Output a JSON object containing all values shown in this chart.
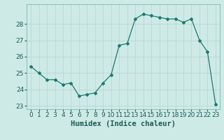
{
  "x": [
    0,
    1,
    2,
    3,
    4,
    5,
    6,
    7,
    8,
    9,
    10,
    11,
    12,
    13,
    14,
    15,
    16,
    17,
    18,
    19,
    20,
    21,
    22,
    23
  ],
  "y": [
    25.4,
    25.0,
    24.6,
    24.6,
    24.3,
    24.4,
    23.6,
    23.7,
    23.8,
    24.4,
    24.9,
    26.7,
    26.8,
    28.3,
    28.6,
    28.5,
    28.4,
    28.3,
    28.3,
    28.1,
    28.3,
    27.0,
    26.3,
    23.1
  ],
  "xlabel": "Humidex (Indice chaleur)",
  "ylim": [
    22.8,
    29.2
  ],
  "yticks": [
    23,
    24,
    25,
    26,
    27,
    28
  ],
  "xticks": [
    0,
    1,
    2,
    3,
    4,
    5,
    6,
    7,
    8,
    9,
    10,
    11,
    12,
    13,
    14,
    15,
    16,
    17,
    18,
    19,
    20,
    21,
    22,
    23
  ],
  "line_color": "#1a7a6e",
  "marker": "D",
  "marker_size": 2.0,
  "bg_color": "#ceeae7",
  "grid_color": "#b8d8d5",
  "label_fontsize": 7.5,
  "tick_fontsize": 6.5
}
